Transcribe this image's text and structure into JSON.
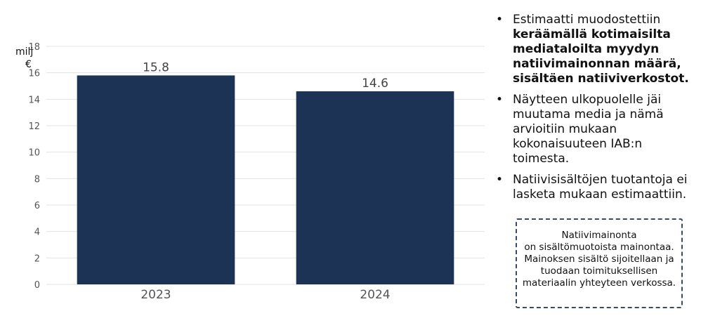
{
  "chart_data": {
    "type": "bar",
    "categories": [
      "2023",
      "2024"
    ],
    "values": [
      15.8,
      14.6
    ],
    "data_labels": [
      "15.8",
      "14.6"
    ],
    "ylabel_line1": "milj",
    "ylabel_line2": "€",
    "ylim": [
      0,
      18
    ],
    "yticks": [
      0,
      2,
      4,
      6,
      8,
      10,
      12,
      14,
      16,
      18
    ],
    "grid": true,
    "bar_color": "#1c3355"
  },
  "bullets": [
    {
      "text": "Estimaatti muodostettiin ",
      "bold": "keräämällä kotimaisilta mediataloilta myydyn natiivimainonnan määrä, sisältäen natiiviverkostot."
    },
    {
      "text": "Näytteen ulkopuolelle jäi muutama media ja nämä arvioitiin mukaan kokonaisuuteen IAB:n toimesta.",
      "bold": ""
    },
    {
      "text": "Natiivisisältöjen tuotantoja ei lasketa mukaan estimaattiin.",
      "bold": ""
    }
  ],
  "note": {
    "line1": "Natiivimainonta",
    "line2": "on sisältömuotoista mainontaa. Mainoksen sisältö sijoitellaan ja tuodaan toimituksellisen materiaalin yhteyteen verkossa."
  }
}
